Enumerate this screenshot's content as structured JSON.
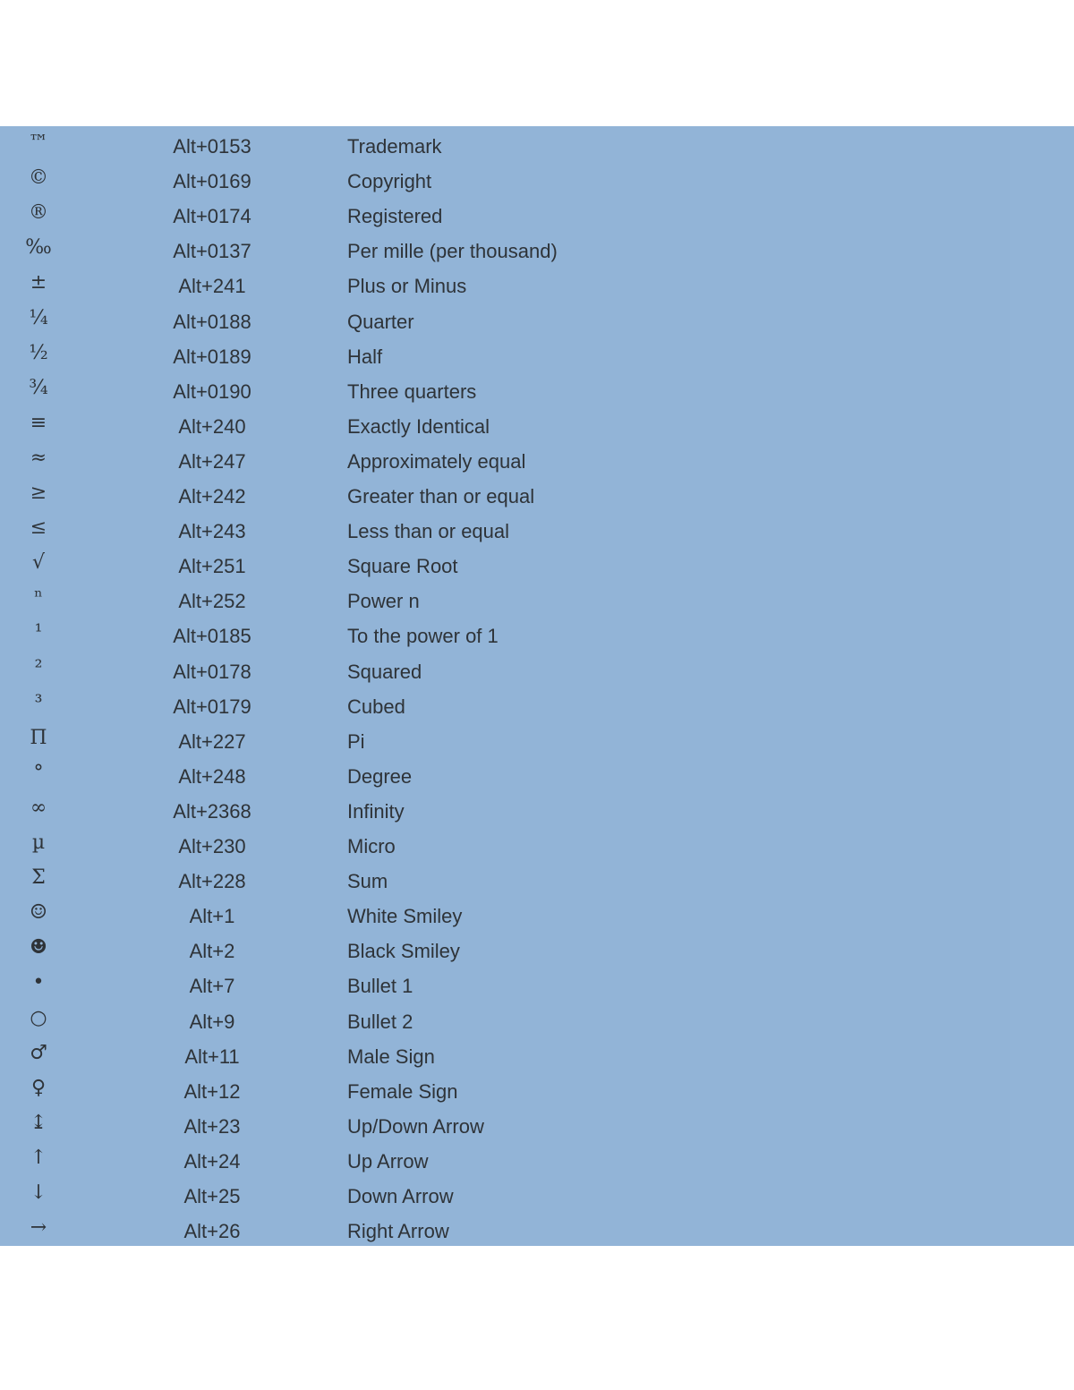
{
  "rows": [
    {
      "symbol": "™",
      "code": "Alt+0153",
      "name": "Trademark"
    },
    {
      "symbol": "©",
      "code": "Alt+0169",
      "name": "Copyright"
    },
    {
      "symbol": "®",
      "code": "Alt+0174",
      "name": "Registered"
    },
    {
      "symbol": "‰",
      "code": "Alt+0137",
      "name": "Per mille (per thousand)"
    },
    {
      "symbol": "±",
      "code": "Alt+241",
      "name": "Plus or Minus"
    },
    {
      "symbol": "¼",
      "code": "Alt+0188",
      "name": "Quarter"
    },
    {
      "symbol": "½",
      "code": "Alt+0189",
      "name": "Half"
    },
    {
      "symbol": "¾",
      "code": "Alt+0190",
      "name": "Three quarters"
    },
    {
      "symbol": "≡",
      "code": "Alt+240",
      "name": "Exactly Identical"
    },
    {
      "symbol": "≈",
      "code": "Alt+247",
      "name": "Approximately equal"
    },
    {
      "symbol": "≥",
      "code": "Alt+242",
      "name": "Greater than or equal"
    },
    {
      "symbol": "≤",
      "code": "Alt+243",
      "name": "Less than or equal"
    },
    {
      "symbol": "√",
      "code": "Alt+251",
      "name": "Square Root"
    },
    {
      "symbol": "ⁿ",
      "code": "Alt+252",
      "name": "Power n"
    },
    {
      "symbol": "¹",
      "code": "Alt+0185",
      "name": "To the power of 1"
    },
    {
      "symbol": "²",
      "code": "Alt+0178",
      "name": "Squared"
    },
    {
      "symbol": "³",
      "code": "Alt+0179",
      "name": "Cubed"
    },
    {
      "symbol": "Π",
      "code": "Alt+227",
      "name": "Pi"
    },
    {
      "symbol": "°",
      "code": "Alt+248",
      "name": "Degree"
    },
    {
      "symbol": "∞",
      "code": "Alt+2368",
      "name": "Infinity"
    },
    {
      "symbol": "µ",
      "code": "Alt+230",
      "name": "Micro"
    },
    {
      "symbol": "Σ",
      "code": "Alt+228",
      "name": "Sum"
    },
    {
      "symbol": "☺",
      "code": "Alt+1",
      "name": "White Smiley"
    },
    {
      "symbol": "☻",
      "code": "Alt+2",
      "name": "Black Smiley"
    },
    {
      "symbol": "•",
      "code": "Alt+7",
      "name": "Bullet 1"
    },
    {
      "symbol": "○",
      "code": "Alt+9",
      "name": "Bullet 2"
    },
    {
      "symbol": "♂",
      "code": "Alt+11",
      "name": "Male Sign"
    },
    {
      "symbol": "♀",
      "code": "Alt+12",
      "name": "Female Sign"
    },
    {
      "symbol": "↨",
      "code": "Alt+23",
      "name": "Up/Down Arrow"
    },
    {
      "symbol": "↑",
      "code": "Alt+24",
      "name": "Up Arrow"
    },
    {
      "symbol": "↓",
      "code": "Alt+25",
      "name": "Down Arrow"
    },
    {
      "symbol": "→",
      "code": "Alt+26",
      "name": "Right Arrow"
    }
  ]
}
